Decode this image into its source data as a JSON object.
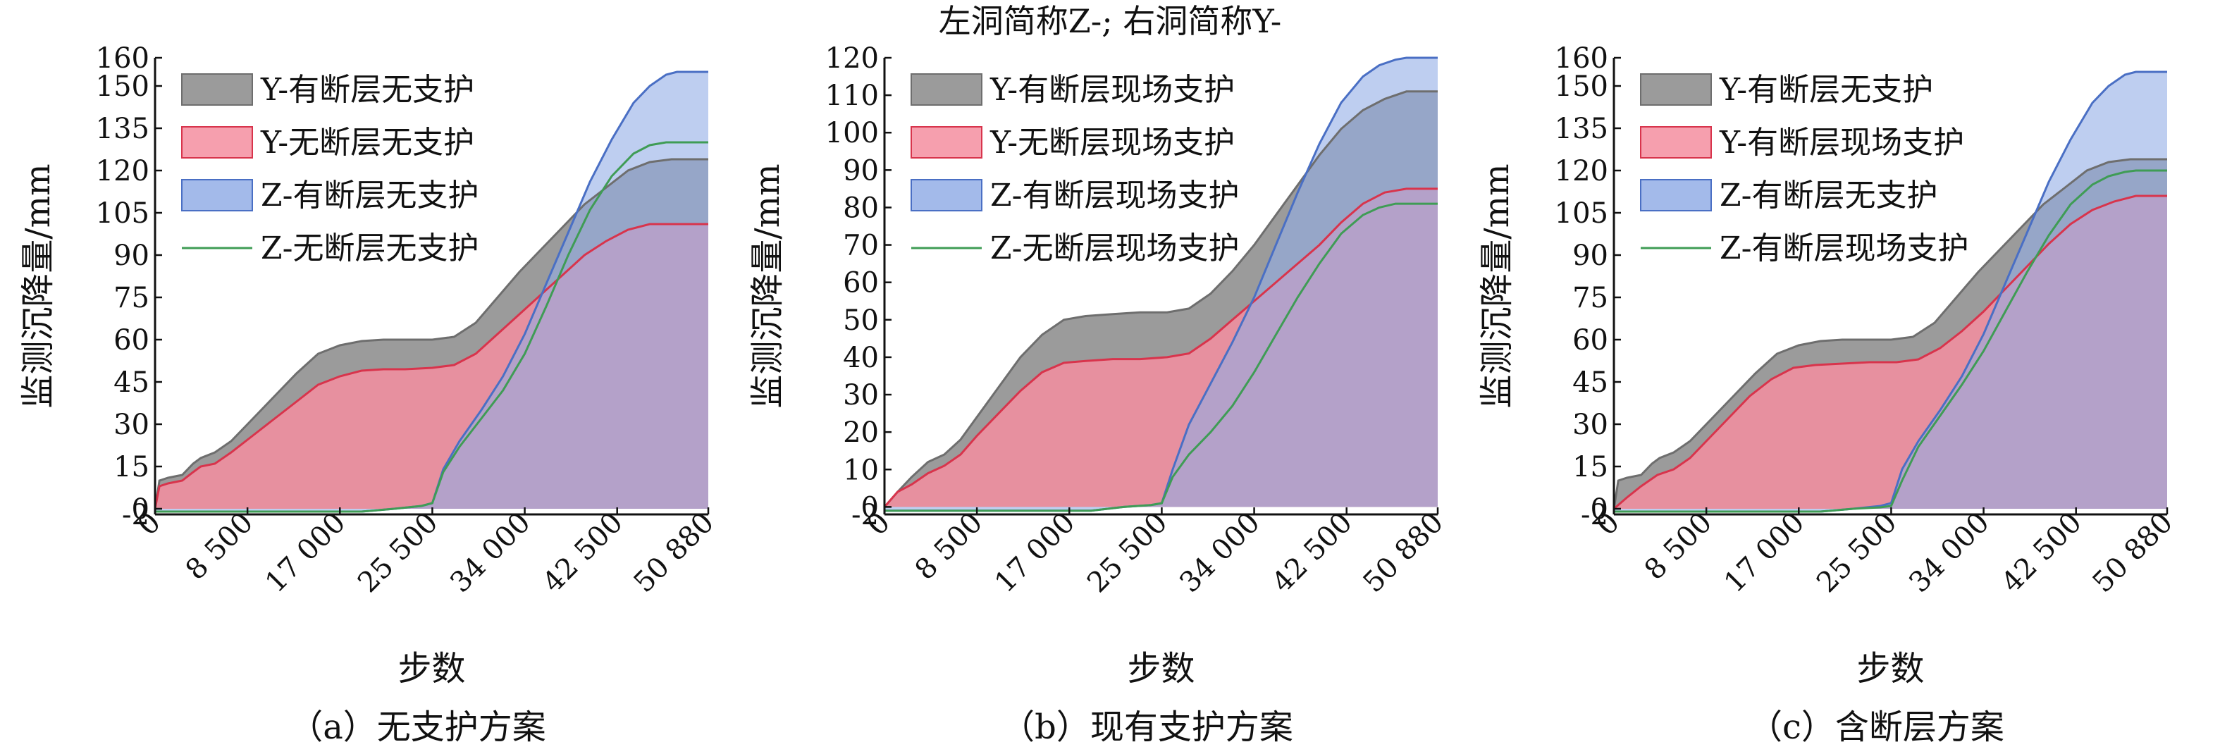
{
  "figure_title": "左洞简称Z-; 右洞简称Y-",
  "colors": {
    "gray_fill": "#8a8a8a",
    "red_line": "#d8344c",
    "red_fill": "#f58ea0",
    "blue_line": "#4a6fc4",
    "blue_fill": "#93aee6",
    "green_line": "#3f9c55"
  },
  "chart_data": [
    {
      "type": "area",
      "caption": "（a）无支护方案",
      "xlabel": "步数",
      "ylabel": "监测沉降量/mm",
      "xlim": [
        0,
        50880
      ],
      "xticks": [
        0,
        8500,
        17000,
        25500,
        34000,
        42500,
        50880
      ],
      "xtick_labels": [
        "0",
        "8 500",
        "17 000",
        "25 500",
        "34 000",
        "42 500",
        "50 880"
      ],
      "ylim": [
        -2,
        160
      ],
      "yticks": [
        -2,
        0,
        15,
        30,
        45,
        60,
        75,
        90,
        105,
        120,
        135,
        150,
        160
      ],
      "legend_position": "top-left",
      "legend": [
        {
          "label": "Y-有断层无支护",
          "style": "gray"
        },
        {
          "label": "Y-无断层无支护",
          "style": "red"
        },
        {
          "label": "Z-有断层无支护",
          "style": "blue"
        },
        {
          "label": "Z-无断层无支护",
          "style": "green"
        }
      ],
      "series": [
        {
          "style": "gray",
          "x": [
            0,
            400,
            1200,
            2500,
            3500,
            4200,
            5500,
            7000,
            9000,
            11000,
            13000,
            15000,
            17000,
            19000,
            21000,
            23000,
            25500,
            27500,
            29500,
            31500,
            33500,
            35500,
            37500,
            39500,
            41500,
            43500,
            45500,
            47500,
            50880
          ],
          "y": [
            0,
            10,
            11,
            12,
            16,
            18,
            20,
            24,
            32,
            40,
            48,
            55,
            58,
            59.5,
            60,
            60,
            60,
            61,
            66,
            75,
            84,
            92,
            100,
            108,
            114,
            120,
            123,
            124,
            124
          ]
        },
        {
          "style": "red",
          "x": [
            0,
            400,
            1200,
            2500,
            3500,
            4200,
            5500,
            7000,
            9000,
            11000,
            13000,
            15000,
            17000,
            19000,
            21000,
            23000,
            25500,
            27500,
            29500,
            31500,
            33500,
            35500,
            37500,
            39500,
            41500,
            43500,
            45500,
            47500,
            50880
          ],
          "y": [
            0,
            8,
            9,
            10,
            13,
            15,
            16,
            20,
            26,
            32,
            38,
            44,
            47,
            49,
            49.5,
            49.5,
            50,
            51,
            55,
            62,
            69,
            76,
            83,
            90,
            95,
            99,
            101,
            101,
            101
          ]
        },
        {
          "style": "blue",
          "x": [
            0,
            5000,
            10000,
            15000,
            19000,
            22000,
            24500,
            25500,
            26500,
            28000,
            30000,
            32000,
            34000,
            36000,
            38000,
            40000,
            42000,
            44000,
            45500,
            47000,
            48000,
            50880
          ],
          "y": [
            -1,
            -1,
            -1,
            -1,
            -1,
            0,
            1,
            2,
            14,
            24,
            35,
            47,
            62,
            80,
            98,
            116,
            131,
            144,
            150,
            154,
            155,
            155
          ]
        },
        {
          "style": "green",
          "x": [
            0,
            5000,
            10000,
            15000,
            19000,
            22000,
            24500,
            25500,
            26500,
            28000,
            30000,
            32000,
            34000,
            36000,
            38000,
            40000,
            42000,
            44000,
            45500,
            47000,
            48000,
            50880
          ],
          "y": [
            -1,
            -1,
            -1,
            -1,
            -1,
            0,
            1,
            2,
            13,
            22,
            32,
            42,
            55,
            72,
            90,
            106,
            118,
            126,
            129,
            130,
            130,
            130
          ]
        }
      ]
    },
    {
      "type": "area",
      "caption": "（b）现有支护方案",
      "xlabel": "步数",
      "ylabel": "监测沉降量/mm",
      "xlim": [
        0,
        50880
      ],
      "xticks": [
        0,
        8500,
        17000,
        25500,
        34000,
        42500,
        50880
      ],
      "xtick_labels": [
        "0",
        "8 500",
        "17 000",
        "25 500",
        "34 000",
        "42 500",
        "50 880"
      ],
      "ylim": [
        -2,
        120
      ],
      "yticks": [
        -2,
        0,
        10,
        20,
        30,
        40,
        50,
        60,
        70,
        80,
        90,
        100,
        110,
        120
      ],
      "legend_position": "top-left",
      "legend": [
        {
          "label": "Y-有断层现场支护",
          "style": "gray"
        },
        {
          "label": "Y-无断层现场支护",
          "style": "red"
        },
        {
          "label": "Z-有断层现场支护",
          "style": "blue"
        },
        {
          "label": "Z-无断层现场支护",
          "style": "green"
        }
      ],
      "series": [
        {
          "style": "gray",
          "x": [
            0,
            1200,
            2500,
            4000,
            5500,
            7000,
            8500,
            10500,
            12500,
            14500,
            16500,
            18500,
            21000,
            23500,
            26000,
            28000,
            30000,
            32000,
            34000,
            36000,
            38000,
            40000,
            42000,
            44000,
            46000,
            48000,
            50880
          ],
          "y": [
            0,
            4,
            8,
            12,
            14,
            18,
            24,
            32,
            40,
            46,
            50,
            51,
            51.5,
            52,
            52,
            53,
            57,
            63,
            70,
            78,
            86,
            94,
            101,
            106,
            109,
            111,
            111
          ]
        },
        {
          "style": "red",
          "x": [
            0,
            1200,
            2500,
            4000,
            5500,
            7000,
            8500,
            10500,
            12500,
            14500,
            16500,
            18500,
            21000,
            23500,
            26000,
            28000,
            30000,
            32000,
            34000,
            36000,
            38000,
            40000,
            42000,
            44000,
            46000,
            48000,
            50880
          ],
          "y": [
            0,
            4,
            6,
            9,
            11,
            14,
            19,
            25,
            31,
            36,
            38.5,
            39,
            39.5,
            39.5,
            40,
            41,
            45,
            50,
            55,
            60,
            65,
            70,
            76,
            81,
            84,
            85,
            85
          ]
        },
        {
          "style": "blue",
          "x": [
            0,
            5000,
            10000,
            15000,
            19000,
            22000,
            24500,
            25500,
            26500,
            28000,
            30000,
            32000,
            34000,
            36000,
            38000,
            40000,
            42000,
            44000,
            45500,
            47000,
            48000,
            50880
          ],
          "y": [
            -1,
            -1,
            -1,
            -1,
            -1,
            0,
            0.5,
            1,
            10,
            22,
            33,
            44,
            56,
            70,
            84,
            97,
            108,
            115,
            118,
            119.5,
            120,
            120
          ]
        },
        {
          "style": "green",
          "x": [
            0,
            5000,
            10000,
            15000,
            19000,
            22000,
            24500,
            25500,
            26500,
            28000,
            30000,
            32000,
            34000,
            36000,
            38000,
            40000,
            42000,
            44000,
            45500,
            47000,
            48000,
            50880
          ],
          "y": [
            -1,
            -1,
            -1,
            -1,
            -1,
            0,
            0.5,
            1,
            8,
            14,
            20,
            27,
            36,
            46,
            56,
            65,
            73,
            78,
            80,
            81,
            81,
            81
          ]
        }
      ]
    },
    {
      "type": "area",
      "caption": "（c）含断层方案",
      "xlabel": "步数",
      "ylabel": "监测沉降量/mm",
      "xlim": [
        0,
        50880
      ],
      "xticks": [
        0,
        8500,
        17000,
        25500,
        34000,
        42500,
        50880
      ],
      "xtick_labels": [
        "0",
        "8 500",
        "17 000",
        "25 500",
        "34 000",
        "42 500",
        "50 880"
      ],
      "ylim": [
        -2,
        160
      ],
      "yticks": [
        -2,
        0,
        15,
        30,
        45,
        60,
        75,
        90,
        105,
        120,
        135,
        150,
        160
      ],
      "legend_position": "top-left",
      "legend": [
        {
          "label": "Y-有断层无支护",
          "style": "gray"
        },
        {
          "label": "Y-有断层现场支护",
          "style": "red"
        },
        {
          "label": "Z-有断层无支护",
          "style": "blue"
        },
        {
          "label": "Z-有断层现场支护",
          "style": "green"
        }
      ],
      "series": [
        {
          "style": "gray",
          "x": [
            0,
            400,
            1200,
            2500,
            3500,
            4200,
            5500,
            7000,
            9000,
            11000,
            13000,
            15000,
            17000,
            19000,
            21000,
            23000,
            25500,
            27500,
            29500,
            31500,
            33500,
            35500,
            37500,
            39500,
            41500,
            43500,
            45500,
            47500,
            50880
          ],
          "y": [
            0,
            10,
            11,
            12,
            16,
            18,
            20,
            24,
            32,
            40,
            48,
            55,
            58,
            59.5,
            60,
            60,
            60,
            61,
            66,
            75,
            84,
            92,
            100,
            108,
            114,
            120,
            123,
            124,
            124
          ]
        },
        {
          "style": "red",
          "x": [
            0,
            1200,
            2500,
            4000,
            5500,
            7000,
            8500,
            10500,
            12500,
            14500,
            16500,
            18500,
            21000,
            23500,
            26000,
            28000,
            30000,
            32000,
            34000,
            36000,
            38000,
            40000,
            42000,
            44000,
            46000,
            48000,
            50880
          ],
          "y": [
            0,
            4,
            8,
            12,
            14,
            18,
            24,
            32,
            40,
            46,
            50,
            51,
            51.5,
            52,
            52,
            53,
            57,
            63,
            70,
            78,
            86,
            94,
            101,
            106,
            109,
            111,
            111
          ]
        },
        {
          "style": "blue",
          "x": [
            0,
            5000,
            10000,
            15000,
            19000,
            22000,
            24500,
            25500,
            26500,
            28000,
            30000,
            32000,
            34000,
            36000,
            38000,
            40000,
            42000,
            44000,
            45500,
            47000,
            48000,
            50880
          ],
          "y": [
            -1,
            -1,
            -1,
            -1,
            -1,
            0,
            1,
            2,
            14,
            24,
            35,
            47,
            62,
            80,
            98,
            116,
            131,
            144,
            150,
            154,
            155,
            155
          ]
        },
        {
          "style": "green",
          "x": [
            0,
            5000,
            10000,
            15000,
            19000,
            22000,
            24500,
            25500,
            26500,
            28000,
            30000,
            32000,
            34000,
            36000,
            38000,
            40000,
            42000,
            44000,
            45500,
            47000,
            48000,
            50880
          ],
          "y": [
            -1,
            -1,
            -1,
            -1,
            -1,
            0,
            0.5,
            1,
            10,
            22,
            33,
            44,
            56,
            70,
            84,
            97,
            108,
            115,
            118,
            119.5,
            120,
            120
          ]
        }
      ]
    }
  ]
}
